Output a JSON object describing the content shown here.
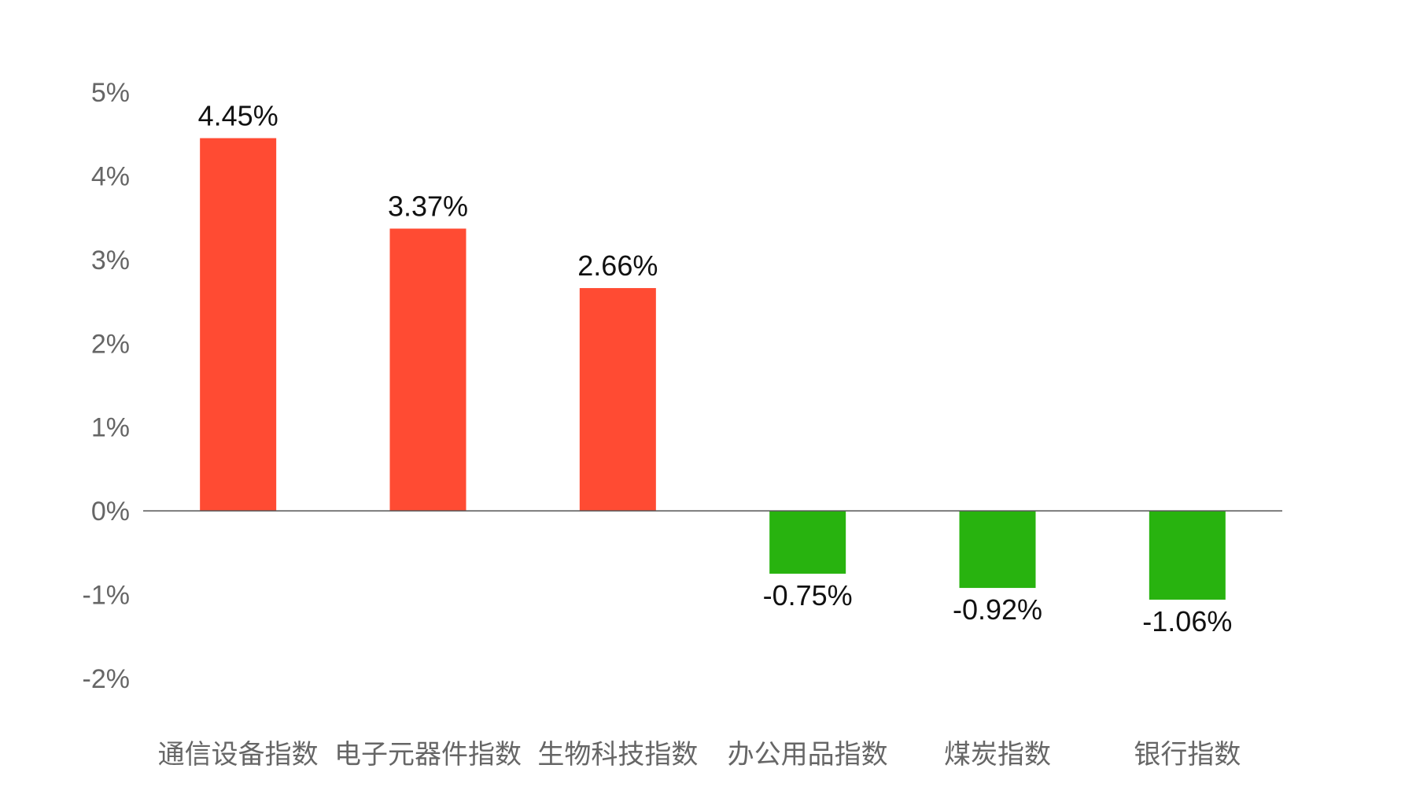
{
  "chart_data": {
    "type": "bar",
    "categories": [
      "通信设备指数",
      "电子元器件指数",
      "生物科技指数",
      "办公用品指数",
      "煤炭指数",
      "银行指数"
    ],
    "values": [
      4.45,
      3.37,
      2.66,
      -0.75,
      -0.92,
      -1.06
    ],
    "value_labels": [
      "4.45%",
      "3.37%",
      "2.66%",
      "-0.75%",
      "-0.92%",
      "-1.06%"
    ],
    "title": "",
    "xlabel": "",
    "ylabel": "",
    "ylim": [
      -2,
      5
    ],
    "yticks": [
      5,
      4,
      3,
      2,
      1,
      0,
      -1,
      -2
    ],
    "ytick_labels": [
      "5%",
      "4%",
      "3%",
      "2%",
      "1%",
      "0%",
      "-1%",
      "-2%"
    ],
    "grid": false,
    "legend": "none",
    "colors": {
      "positive": "#FF4B33",
      "negative": "#28B30F",
      "axis": "#555555",
      "tick_text": "#666666",
      "label_text": "#111111"
    }
  }
}
